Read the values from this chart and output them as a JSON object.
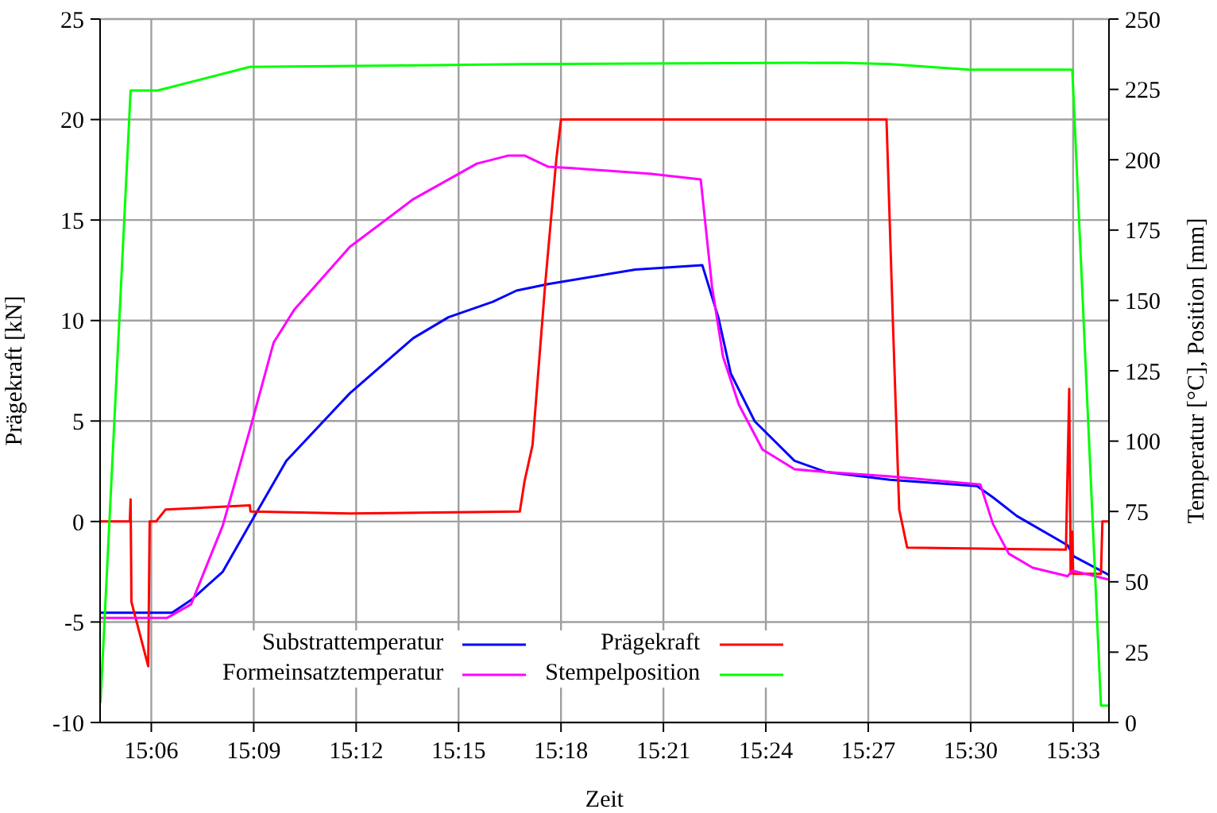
{
  "chart_data": {
    "type": "line",
    "xlabel": "Zeit",
    "ylabel": "Prägekraft [kN]",
    "y2label": "Temperatur [°C], Position [mm]",
    "xlim": [
      15.075,
      15.5675
    ],
    "xticks": [
      {
        "value": 15.1,
        "label": "15:06"
      },
      {
        "value": 15.15,
        "label": "15:09"
      },
      {
        "value": 15.2,
        "label": "15:12"
      },
      {
        "value": 15.25,
        "label": "15:15"
      },
      {
        "value": 15.3,
        "label": "15:18"
      },
      {
        "value": 15.35,
        "label": "15:21"
      },
      {
        "value": 15.4,
        "label": "15:24"
      },
      {
        "value": 15.45,
        "label": "15:27"
      },
      {
        "value": 15.5,
        "label": "15:30"
      },
      {
        "value": 15.55,
        "label": "15:33"
      }
    ],
    "ylim": [
      -10,
      25
    ],
    "yticks": [
      -10,
      -5,
      0,
      5,
      10,
      15,
      20,
      25
    ],
    "y2lim": [
      0,
      250
    ],
    "y2ticks": [
      0,
      25,
      50,
      75,
      100,
      125,
      150,
      175,
      200,
      225,
      250
    ],
    "grid": true,
    "legend": "bottom",
    "marker": "none",
    "line_style": "solid",
    "series": [
      {
        "name": "Substrattemperatur",
        "color": "#0000ff",
        "axis": "y2",
        "x": [
          15.0752,
          15.1101,
          15.1194,
          15.1349,
          15.1481,
          15.1659,
          15.1969,
          15.2279,
          15.245,
          15.2667,
          15.2783,
          15.2938,
          15.3364,
          15.369,
          15.3768,
          15.3829,
          15.3946,
          15.414,
          15.4295,
          15.4605,
          15.5031,
          15.5109,
          15.5225,
          15.5473,
          15.5504,
          15.5674
        ],
        "values": [
          39,
          39,
          43.5,
          53.6,
          70.5,
          93,
          117,
          136.6,
          144,
          149.5,
          153.5,
          155.8,
          161,
          162.5,
          144,
          124,
          107,
          93,
          89,
          86.3,
          84,
          80,
          73.4,
          63,
          59,
          52.5
        ]
      },
      {
        "name": "Prägekraft",
        "color": "#ff0000",
        "axis": "y",
        "x": [
          15.0752,
          15.0895,
          15.0899,
          15.0903,
          15.0985,
          15.0992,
          15.1023,
          15.107,
          15.1481,
          15.1484,
          15.1487,
          15.1969,
          15.2799,
          15.2822,
          15.2861,
          15.2922,
          15.2977,
          15.3,
          15.4589,
          15.462,
          15.4651,
          15.469,
          15.5465,
          15.5481,
          15.5488,
          15.5496,
          15.55,
          15.5636,
          15.5643,
          15.5674
        ],
        "values": [
          0,
          0,
          1.1,
          -4,
          -7.2,
          0,
          0,
          0.6,
          0.8,
          0.5,
          0.5,
          0.4,
          0.5,
          2,
          3.8,
          11.7,
          18,
          20,
          20,
          10,
          0.6,
          -1.3,
          -1.4,
          6.6,
          -2.6,
          -0.5,
          -2.6,
          -2.6,
          0,
          0
        ]
      },
      {
        "name": "Formeinsatztemperatur",
        "color": "#ff00ff",
        "axis": "y2",
        "x": [
          15.0752,
          15.1078,
          15.1194,
          15.1349,
          15.1481,
          15.1597,
          15.1698,
          15.1969,
          15.2279,
          15.2589,
          15.2744,
          15.2822,
          15.2938,
          15.3054,
          15.3442,
          15.3682,
          15.3737,
          15.3791,
          15.3868,
          15.3984,
          15.414,
          15.4295,
          15.4605,
          15.5047,
          15.5109,
          15.5186,
          15.5302,
          15.5473,
          15.5496,
          15.5674
        ],
        "values": [
          37.2,
          37.2,
          42,
          70,
          104,
          135,
          146.7,
          169,
          186,
          198.6,
          201.5,
          201.5,
          197.5,
          197,
          195,
          193,
          155,
          130,
          113,
          97,
          90,
          89,
          87.5,
          84.6,
          70.5,
          60,
          55,
          52,
          54,
          50.8
        ]
      },
      {
        "name": "Stempelposition",
        "color": "#00ff00",
        "axis": "y2",
        "x": [
          15.0752,
          15.0899,
          15.1031,
          15.1481,
          15.2202,
          15.2822,
          15.4372,
          15.4605,
          15.4992,
          15.5496,
          15.5636,
          15.5674
        ],
        "values": [
          7,
          224.6,
          224.6,
          233,
          233.5,
          234,
          234.5,
          234,
          232,
          232,
          6,
          6
        ]
      }
    ]
  }
}
